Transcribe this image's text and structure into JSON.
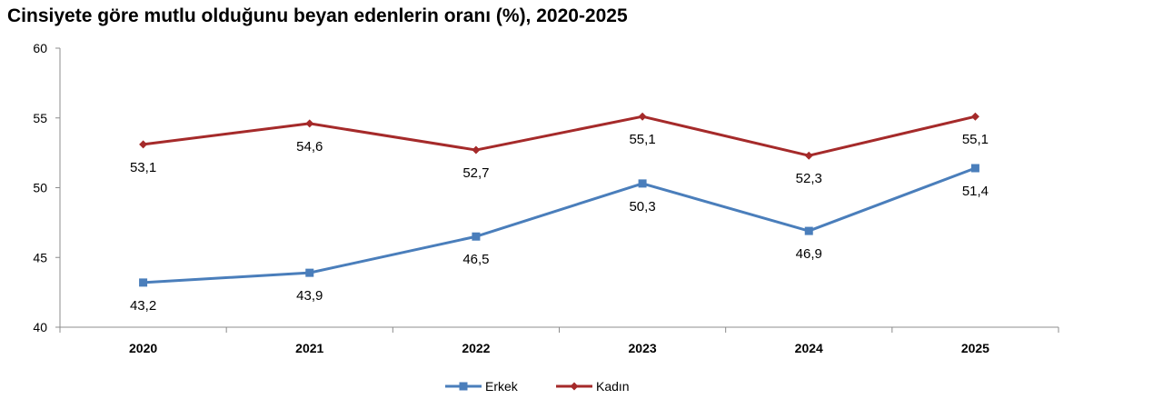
{
  "chart_data": {
    "type": "line",
    "title": "Cinsiyete göre mutlu olduğunu beyan edenlerin oranı (%), 2020-2025",
    "categories": [
      "2020",
      "2021",
      "2022",
      "2023",
      "2024",
      "2025"
    ],
    "ylim": [
      40,
      60
    ],
    "yticks": [
      40,
      45,
      50,
      55,
      60
    ],
    "grid": false,
    "legend_position": "bottom",
    "series": [
      {
        "name": "Erkek",
        "color": "#4a7ebb",
        "marker": "square",
        "values": [
          43.2,
          43.9,
          46.5,
          50.3,
          46.9,
          51.4
        ],
        "labels": [
          "43,2",
          "43,9",
          "46,5",
          "50,3",
          "46,9",
          "51,4"
        ]
      },
      {
        "name": "Kadın",
        "color": "#a52a2a",
        "marker": "diamond",
        "values": [
          53.1,
          54.6,
          52.7,
          55.1,
          52.3,
          55.1
        ],
        "labels": [
          "53,1",
          "54,6",
          "52,7",
          "55,1",
          "52,3",
          "55,1"
        ]
      }
    ]
  }
}
